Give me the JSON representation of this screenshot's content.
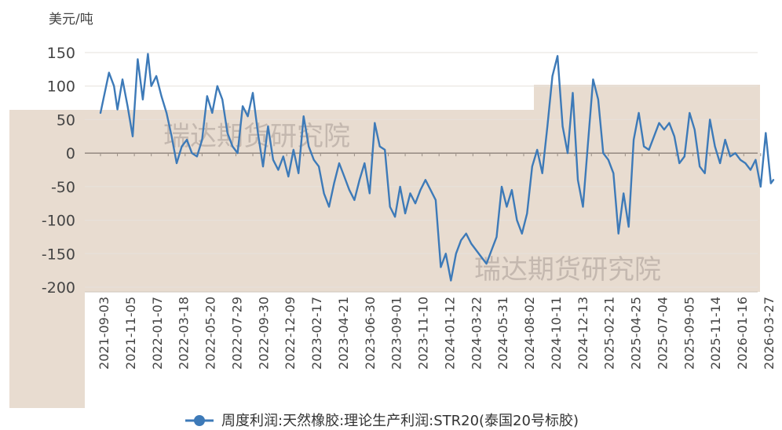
{
  "chart_data": {
    "type": "line",
    "title": "",
    "ylabel": "美元/吨",
    "xlabel": "",
    "ylim": [
      -200,
      150
    ],
    "yticks": [
      150,
      100,
      50,
      0,
      -50,
      -100,
      -150,
      -200
    ],
    "yticks_labels": [
      "150",
      "100",
      "50",
      "0",
      "-50",
      "-100",
      "-150",
      "-200"
    ],
    "categories": [
      "2021-09-03",
      "2021-11-05",
      "2022-01-07",
      "2022-03-18",
      "2022-05-20",
      "2022-07-29",
      "2022-09-30",
      "2022-12-09",
      "2023-02-17",
      "2023-04-21",
      "2023-06-30",
      "2023-09-01",
      "2023-11-10",
      "2024-01-12",
      "2024-03-22",
      "2024-05-31",
      "2024-08-02",
      "2024-10-11",
      "2024-12-13",
      "2025-02-21",
      "2025-04-25",
      "2025-07-04",
      "2025-09-05",
      "2025-11-14",
      "2026-01-16",
      "2026-03-27"
    ],
    "series": [
      {
        "name": "周度利润:天然橡胶:理论生产利润:STR20(泰国20号标胶)",
        "color": "#3d7ab8",
        "values": [
          [
            0,
            60
          ],
          [
            0.5,
            120
          ],
          [
            0.8,
            100
          ],
          [
            1.0,
            65
          ],
          [
            1.3,
            110
          ],
          [
            1.6,
            70
          ],
          [
            1.9,
            25
          ],
          [
            2.2,
            140
          ],
          [
            2.5,
            80
          ],
          [
            2.8,
            148
          ],
          [
            3.0,
            100
          ],
          [
            3.3,
            115
          ],
          [
            3.6,
            85
          ],
          [
            3.9,
            60
          ],
          [
            4.2,
            25
          ],
          [
            4.5,
            -15
          ],
          [
            4.8,
            10
          ],
          [
            5.1,
            20
          ],
          [
            5.4,
            0
          ],
          [
            5.7,
            -5
          ],
          [
            6.0,
            20
          ],
          [
            6.3,
            85
          ],
          [
            6.6,
            60
          ],
          [
            6.9,
            100
          ],
          [
            7.2,
            80
          ],
          [
            7.5,
            30
          ],
          [
            7.8,
            10
          ],
          [
            8.1,
            0
          ],
          [
            8.4,
            70
          ],
          [
            8.7,
            55
          ],
          [
            9.0,
            90
          ],
          [
            9.3,
            30
          ],
          [
            9.6,
            -20
          ],
          [
            9.9,
            40
          ],
          [
            10.2,
            -10
          ],
          [
            10.5,
            -25
          ],
          [
            10.8,
            -5
          ],
          [
            11.1,
            -35
          ],
          [
            11.4,
            5
          ],
          [
            11.7,
            -30
          ],
          [
            12.0,
            55
          ],
          [
            12.3,
            10
          ],
          [
            12.6,
            -10
          ],
          [
            12.9,
            -20
          ],
          [
            13.2,
            -60
          ],
          [
            13.5,
            -80
          ],
          [
            13.8,
            -45
          ],
          [
            14.1,
            -15
          ],
          [
            14.4,
            -35
          ],
          [
            14.7,
            -55
          ],
          [
            15.0,
            -70
          ],
          [
            15.3,
            -40
          ],
          [
            15.6,
            -15
          ],
          [
            15.9,
            -60
          ],
          [
            16.2,
            45
          ],
          [
            16.5,
            10
          ],
          [
            16.8,
            5
          ],
          [
            17.1,
            -80
          ],
          [
            17.4,
            -95
          ],
          [
            17.7,
            -50
          ],
          [
            18.0,
            -90
          ],
          [
            18.3,
            -60
          ],
          [
            18.6,
            -75
          ],
          [
            18.9,
            -55
          ],
          [
            19.2,
            -40
          ],
          [
            19.5,
            -55
          ],
          [
            19.8,
            -70
          ],
          [
            20.1,
            -170
          ],
          [
            20.4,
            -150
          ],
          [
            20.7,
            -190
          ],
          [
            21.0,
            -150
          ],
          [
            21.3,
            -130
          ],
          [
            21.6,
            -120
          ],
          [
            21.9,
            -135
          ],
          [
            22.2,
            -145
          ],
          [
            22.5,
            -155
          ],
          [
            22.8,
            -165
          ],
          [
            23.1,
            -145
          ],
          [
            23.4,
            -125
          ],
          [
            23.7,
            -50
          ],
          [
            24.0,
            -80
          ],
          [
            24.3,
            -55
          ],
          [
            24.6,
            -100
          ],
          [
            24.9,
            -120
          ],
          [
            25.2,
            -90
          ],
          [
            25.5,
            -20
          ],
          [
            25.8,
            5
          ],
          [
            26.1,
            -30
          ],
          [
            26.4,
            40
          ],
          [
            26.7,
            115
          ],
          [
            27.0,
            145
          ],
          [
            27.3,
            40
          ],
          [
            27.6,
            0
          ],
          [
            27.9,
            90
          ],
          [
            28.2,
            -40
          ],
          [
            28.5,
            -80
          ],
          [
            28.8,
            15
          ],
          [
            29.1,
            110
          ],
          [
            29.4,
            80
          ],
          [
            29.7,
            0
          ],
          [
            30.0,
            -10
          ],
          [
            30.3,
            -30
          ],
          [
            30.6,
            -120
          ],
          [
            30.9,
            -60
          ],
          [
            31.2,
            -110
          ],
          [
            31.5,
            20
          ],
          [
            31.8,
            60
          ],
          [
            32.1,
            10
          ],
          [
            32.4,
            5
          ],
          [
            32.7,
            25
          ],
          [
            33.0,
            45
          ],
          [
            33.3,
            35
          ],
          [
            33.6,
            45
          ],
          [
            33.9,
            25
          ],
          [
            34.2,
            -15
          ],
          [
            34.5,
            -5
          ],
          [
            34.8,
            60
          ],
          [
            35.1,
            35
          ],
          [
            35.4,
            -20
          ],
          [
            35.7,
            -30
          ],
          [
            36.0,
            50
          ],
          [
            36.3,
            10
          ],
          [
            36.6,
            -15
          ],
          [
            36.9,
            20
          ],
          [
            37.2,
            -5
          ],
          [
            37.5,
            0
          ],
          [
            37.8,
            -10
          ],
          [
            38.1,
            -15
          ],
          [
            38.4,
            -25
          ],
          [
            38.7,
            -10
          ],
          [
            39.0,
            -50
          ],
          [
            39.3,
            30
          ],
          [
            39.6,
            -45
          ],
          [
            39.75,
            -40
          ]
        ]
      }
    ],
    "watermarks": [
      "瑞达期货研究院",
      "瑞达期货研究院"
    ],
    "legend": {
      "position": "bottom",
      "marker": "line-with-dot"
    },
    "background": {
      "plot": "#e8dcd0",
      "page": "#ffffff"
    }
  }
}
